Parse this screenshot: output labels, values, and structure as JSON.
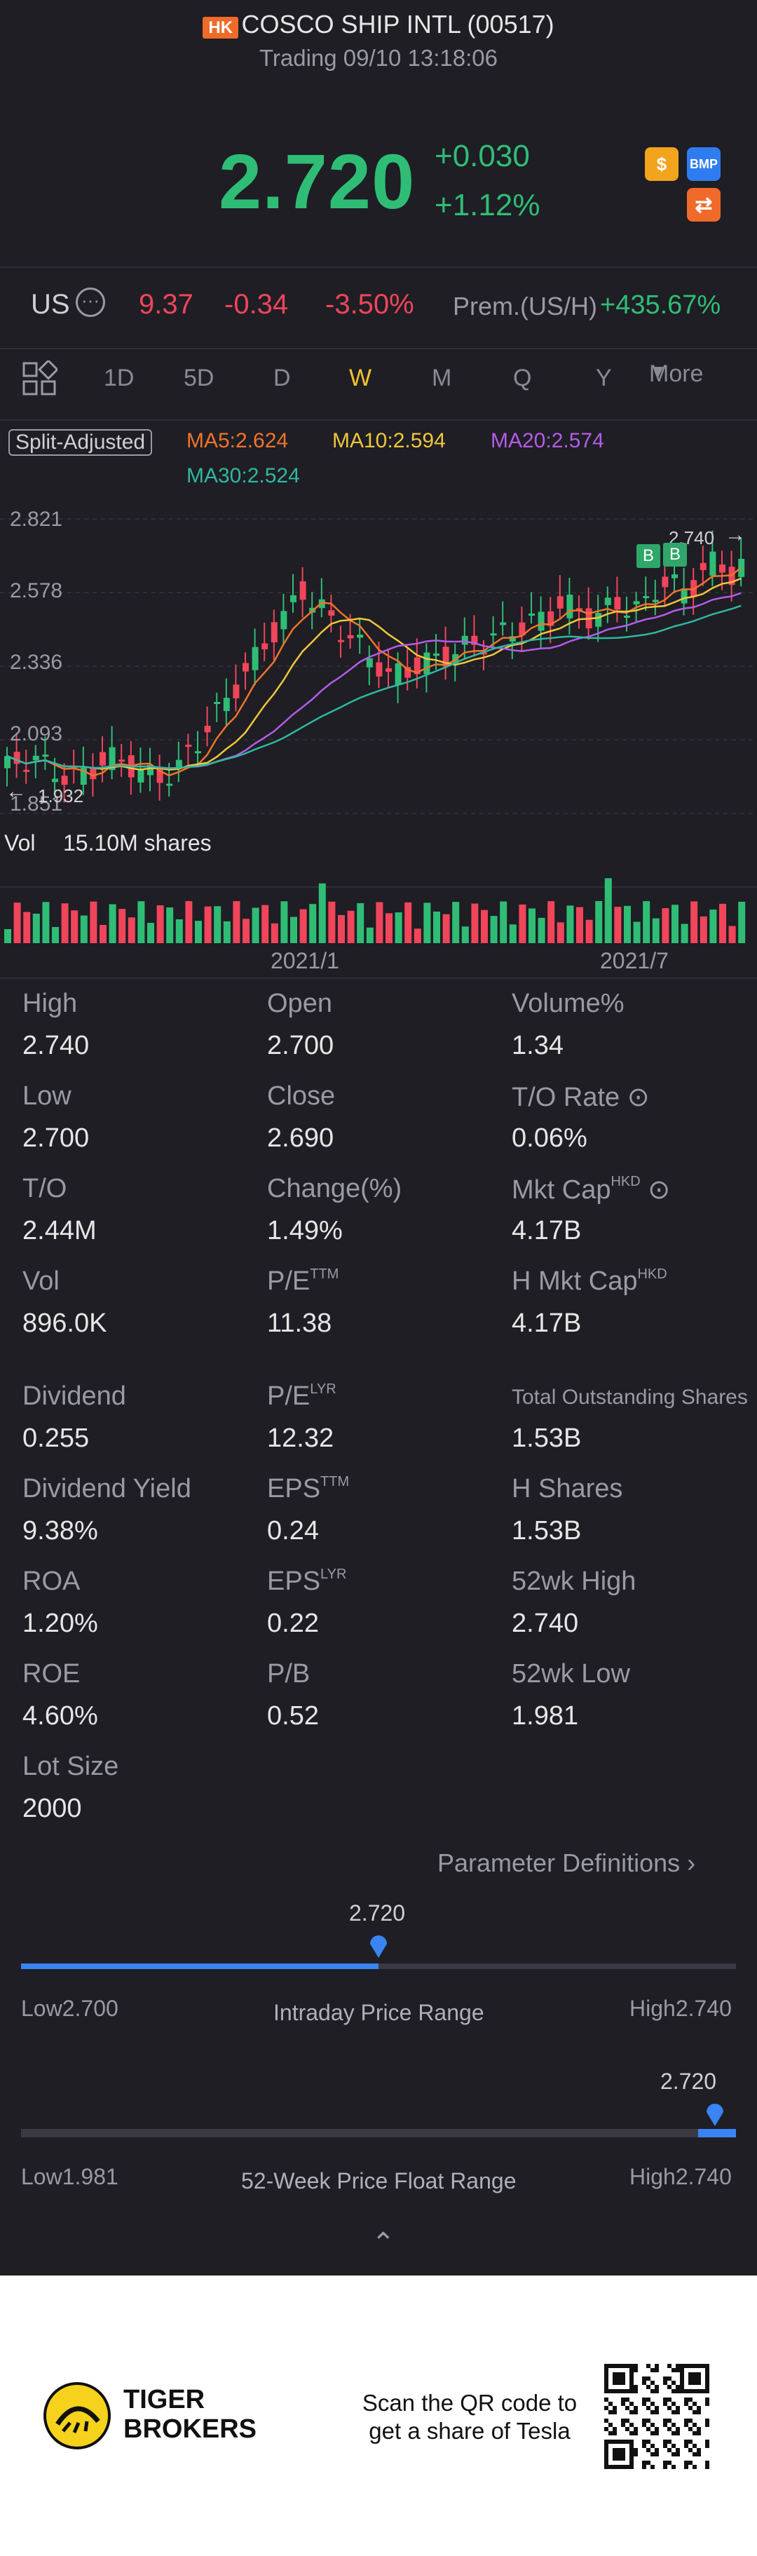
{
  "header": {
    "market_badge": "HK",
    "title": "COSCO SHIP INTL (00517)",
    "status": "Trading 09/10 13:18:06",
    "price": "2.720",
    "change": "+0.030",
    "change_pct": "+1.12%",
    "icons": [
      "dollar-icon",
      "bmp-icon",
      "swap-icon"
    ],
    "bmp_label": "BMP"
  },
  "us_row": {
    "label": "US",
    "price": "9.37",
    "change": "-0.34",
    "change_pct": "-3.50%",
    "prem_label": "Prem.(US/H)",
    "prem_value": "+435.67%"
  },
  "tabs": {
    "items": [
      "1D",
      "5D",
      "D",
      "W",
      "M",
      "Q",
      "Y"
    ],
    "active": "W",
    "more": "More"
  },
  "ma": {
    "split_label": "Split-Adjusted",
    "ma5": "MA5:2.624",
    "ma10": "MA10:2.594",
    "ma20": "MA20:2.574",
    "ma30": "MA30:2.524",
    "colors": {
      "ma5": "#f0742c",
      "ma10": "#f0c63c",
      "ma20": "#b55ce8",
      "ma30": "#2fb8a0"
    }
  },
  "chart_data": {
    "type": "candlestick",
    "y_ticks": [
      "2.821",
      "2.578",
      "2.336",
      "2.093",
      "1.851"
    ],
    "max_label": "2.740",
    "min_label": "1.932",
    "x_labels": [
      "2021/1",
      "2021/7"
    ],
    "volume_label": "Vol",
    "volume_value": "15.10M shares",
    "markers": [
      "B",
      "B"
    ]
  },
  "stats": {
    "rows": [
      [
        {
          "label": "High",
          "value": "2.740"
        },
        {
          "label": "Open",
          "value": "2.700"
        },
        {
          "label": "Volume%",
          "value": "1.34"
        }
      ],
      [
        {
          "label": "Low",
          "value": "2.700"
        },
        {
          "label": "Close",
          "value": "2.690"
        },
        {
          "label": "T/O Rate",
          "value": "0.06%"
        }
      ],
      [
        {
          "label": "T/O",
          "value": "2.44M"
        },
        {
          "label": "Change(%)",
          "value": "1.49%"
        },
        {
          "label": "Mkt Cap",
          "sup": "HKD",
          "value": "4.17B"
        }
      ],
      [
        {
          "label": "Vol",
          "value": "896.0K"
        },
        {
          "label": "P/E",
          "sup": "TTM",
          "value": "11.38"
        },
        {
          "label": "H Mkt Cap",
          "sup": "HKD",
          "value": "4.17B"
        }
      ],
      [
        {
          "label": "Dividend",
          "value": "0.255"
        },
        {
          "label": "P/E",
          "sup": "LYR",
          "value": "12.32"
        },
        {
          "label": "Total Outstanding Shares",
          "value": "1.53B"
        }
      ],
      [
        {
          "label": "Dividend Yield",
          "value": "9.38%"
        },
        {
          "label": "EPS",
          "sup": "TTM",
          "value": "0.24"
        },
        {
          "label": "H Shares",
          "value": "1.53B"
        }
      ],
      [
        {
          "label": "ROA",
          "value": "1.20%"
        },
        {
          "label": "EPS",
          "sup": "LYR",
          "value": "0.22"
        },
        {
          "label": "52wk High",
          "value": "2.740"
        }
      ],
      [
        {
          "label": "ROE",
          "value": "4.60%"
        },
        {
          "label": "P/B",
          "value": "0.52"
        },
        {
          "label": "52wk Low",
          "value": "1.981"
        }
      ],
      [
        {
          "label": "Lot Size",
          "value": "2000"
        }
      ]
    ],
    "param_link": "Parameter Definitions"
  },
  "intraday": {
    "current": "2.720",
    "low_label": "Low",
    "low": "2.700",
    "title": "Intraday Price Range",
    "high_label": "High",
    "high": "2.740",
    "position": 0.5
  },
  "week52": {
    "current": "2.720",
    "low_label": "Low",
    "low": "1.981",
    "title": "52-Week Price Float Range",
    "high_label": "High",
    "high": "2.740",
    "position": 0.97
  },
  "footer": {
    "brand_line1": "TIGER",
    "brand_line2": "BROKERS",
    "cta_line1": "Scan the QR code to",
    "cta_line2": "get a share of Tesla"
  }
}
